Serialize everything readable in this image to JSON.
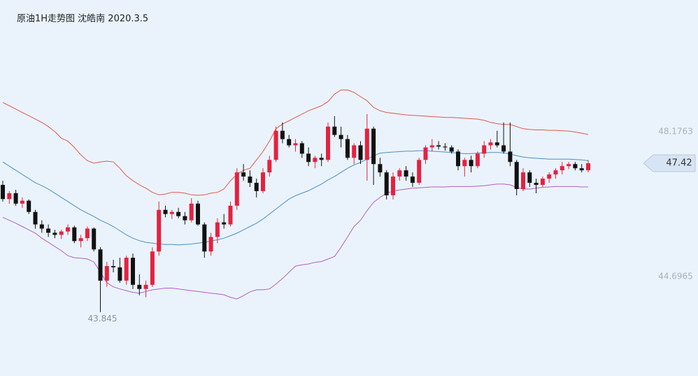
{
  "chart_data": {
    "type": "candlestick",
    "title": "原油1H走势图 沈皓南 2020.3.5",
    "up_color": "#e5213f",
    "down_color": "#111111",
    "ylim": [
      42.31,
      51.34
    ],
    "yticks": [
      44.6965,
      48.1763
    ],
    "low_label": 43.845,
    "low_index": 15,
    "last_price": 47.42,
    "open": [
      46.9,
      46.56,
      46.7,
      46.45,
      46.52,
      46.25,
      45.95,
      45.85,
      45.75,
      45.7,
      45.78,
      45.88,
      45.55,
      45.62,
      45.85,
      45.35,
      44.6,
      44.95,
      44.92,
      44.6,
      45.15,
      44.5,
      44.4,
      44.5,
      45.3,
      46.3,
      46.2,
      46.25,
      46.15,
      46.05,
      46.45,
      45.95,
      45.3,
      45.65,
      46.0,
      45.95,
      46.4,
      47.2,
      47.1,
      46.95,
      46.75,
      47.2,
      47.5,
      48.2,
      48.0,
      47.85,
      47.9,
      47.65,
      47.45,
      47.55,
      47.5,
      48.3,
      48.1,
      48.0,
      47.55,
      47.85,
      47.5,
      48.25,
      47.4,
      47.2,
      46.65,
      47.1,
      47.25,
      47.1,
      46.95,
      47.5,
      47.8,
      47.85,
      47.82,
      47.8,
      47.7,
      47.35,
      47.5,
      47.35,
      47.65,
      47.85,
      47.92,
      47.85,
      47.7,
      47.45,
      46.8,
      47.2,
      46.95,
      46.9,
      47.05,
      47.15,
      47.25,
      47.35,
      47.4,
      47.3,
      47.25
    ],
    "high": [
      47.0,
      46.75,
      46.78,
      46.6,
      46.55,
      46.3,
      46.05,
      45.95,
      45.82,
      45.82,
      45.95,
      45.92,
      45.7,
      45.9,
      45.88,
      45.4,
      45.05,
      45.1,
      45.15,
      45.2,
      45.25,
      44.75,
      44.6,
      45.4,
      46.5,
      46.4,
      46.3,
      46.35,
      46.25,
      46.58,
      46.52,
      46.0,
      45.75,
      46.1,
      46.2,
      46.5,
      47.3,
      47.4,
      47.25,
      47.05,
      47.3,
      47.6,
      48.3,
      48.4,
      48.1,
      48.0,
      47.95,
      47.8,
      47.6,
      47.65,
      48.4,
      48.55,
      48.3,
      48.1,
      47.9,
      47.95,
      48.6,
      48.3,
      47.55,
      47.25,
      47.2,
      47.3,
      47.35,
      47.2,
      47.55,
      47.85,
      48.0,
      47.95,
      47.9,
      47.85,
      47.75,
      47.55,
      47.6,
      47.7,
      47.95,
      48.0,
      48.2,
      48.4,
      48.4,
      47.5,
      47.3,
      47.25,
      47.05,
      47.1,
      47.2,
      47.3,
      47.45,
      47.45,
      47.45,
      47.4,
      47.5
    ],
    "low": [
      46.5,
      46.45,
      46.4,
      46.35,
      46.2,
      45.85,
      45.75,
      45.65,
      45.62,
      45.6,
      45.7,
      45.5,
      45.4,
      45.55,
      45.3,
      43.845,
      44.45,
      44.8,
      44.55,
      44.5,
      44.4,
      44.25,
      44.2,
      44.45,
      45.2,
      46.12,
      46.08,
      46.1,
      45.95,
      46.0,
      45.92,
      45.15,
      45.2,
      45.5,
      45.85,
      45.9,
      46.3,
      47.0,
      46.85,
      46.6,
      46.7,
      47.1,
      47.45,
      47.9,
      47.8,
      47.7,
      47.55,
      47.35,
      47.3,
      47.35,
      47.45,
      48.05,
      47.8,
      47.5,
      47.4,
      47.4,
      47.0,
      46.9,
      47.1,
      46.55,
      46.55,
      47.0,
      47.0,
      46.85,
      46.9,
      47.4,
      47.7,
      47.75,
      47.72,
      47.65,
      47.25,
      47.1,
      47.2,
      47.3,
      47.55,
      47.75,
      47.8,
      47.65,
      47.35,
      46.65,
      46.75,
      46.85,
      46.7,
      46.85,
      46.95,
      47.05,
      47.15,
      47.28,
      47.25,
      47.2,
      47.2
    ],
    "close": [
      46.56,
      46.7,
      46.45,
      46.52,
      46.25,
      45.95,
      45.85,
      45.75,
      45.7,
      45.78,
      45.88,
      45.55,
      45.62,
      45.85,
      45.35,
      44.6,
      44.95,
      44.92,
      44.6,
      45.15,
      44.5,
      44.4,
      44.5,
      45.3,
      46.3,
      46.2,
      46.25,
      46.15,
      46.05,
      46.45,
      45.95,
      45.3,
      45.65,
      46.0,
      45.95,
      46.4,
      47.2,
      47.1,
      46.95,
      46.75,
      47.2,
      47.5,
      48.2,
      48.0,
      47.85,
      47.9,
      47.65,
      47.45,
      47.55,
      47.5,
      48.3,
      48.1,
      48.0,
      47.55,
      47.85,
      47.5,
      48.25,
      47.4,
      47.2,
      46.65,
      47.1,
      47.25,
      47.1,
      46.95,
      47.5,
      47.8,
      47.85,
      47.82,
      47.8,
      47.7,
      47.35,
      47.5,
      47.35,
      47.65,
      47.85,
      47.92,
      47.85,
      47.7,
      47.45,
      46.8,
      47.2,
      46.95,
      46.9,
      47.05,
      47.15,
      47.25,
      47.35,
      47.4,
      47.3,
      47.25,
      47.42
    ],
    "bands": [
      {
        "color": "#e2574c",
        "values": [
          48.88,
          48.8,
          48.72,
          48.64,
          48.56,
          48.48,
          48.4,
          48.3,
          48.18,
          48.02,
          47.95,
          47.8,
          47.62,
          47.48,
          47.42,
          47.45,
          47.47,
          47.45,
          47.3,
          47.12,
          47.0,
          46.9,
          46.82,
          46.72,
          46.66,
          46.68,
          46.72,
          46.72,
          46.7,
          46.66,
          46.65,
          46.66,
          46.7,
          46.72,
          46.8,
          47.0,
          47.15,
          47.25,
          47.3,
          47.5,
          47.7,
          47.95,
          48.25,
          48.36,
          48.44,
          48.52,
          48.6,
          48.68,
          48.74,
          48.8,
          48.9,
          49.08,
          49.18,
          49.18,
          49.12,
          49.02,
          48.92,
          48.76,
          48.68,
          48.64,
          48.62,
          48.6,
          48.58,
          48.57,
          48.56,
          48.55,
          48.54,
          48.53,
          48.52,
          48.52,
          48.51,
          48.5,
          48.49,
          48.48,
          48.45,
          48.4,
          48.37,
          48.35,
          48.35,
          48.3,
          48.25,
          48.23,
          48.22,
          48.22,
          48.21,
          48.21,
          48.2,
          48.19,
          48.17,
          48.14,
          48.11
        ]
      },
      {
        "color": "#4a8fc9",
        "values": [
          47.45,
          47.35,
          47.25,
          47.15,
          47.05,
          46.95,
          46.88,
          46.8,
          46.7,
          46.6,
          46.5,
          46.4,
          46.3,
          46.22,
          46.14,
          46.05,
          45.98,
          45.9,
          45.8,
          45.7,
          45.62,
          45.56,
          45.52,
          45.5,
          45.48,
          45.47,
          45.47,
          45.46,
          45.47,
          45.48,
          45.5,
          45.52,
          45.55,
          45.58,
          45.62,
          45.68,
          45.74,
          45.82,
          45.9,
          45.98,
          46.08,
          46.2,
          46.32,
          46.44,
          46.56,
          46.64,
          46.7,
          46.76,
          46.84,
          46.92,
          47.02,
          47.1,
          47.2,
          47.3,
          47.38,
          47.44,
          47.52,
          47.6,
          47.66,
          47.68,
          47.69,
          47.7,
          47.71,
          47.71,
          47.72,
          47.72,
          47.71,
          47.7,
          47.69,
          47.68,
          47.66,
          47.65,
          47.65,
          47.66,
          47.67,
          47.68,
          47.68,
          47.67,
          47.64,
          47.6,
          47.57,
          47.55,
          47.54,
          47.53,
          47.52,
          47.52,
          47.52,
          47.52,
          47.51,
          47.5,
          47.48
        ]
      },
      {
        "color": "#b45ec4",
        "values": [
          46.12,
          46.05,
          45.98,
          45.9,
          45.82,
          45.74,
          45.62,
          45.52,
          45.42,
          45.32,
          45.2,
          45.15,
          45.14,
          45.12,
          45.05,
          44.8,
          44.55,
          44.45,
          44.4,
          44.36,
          44.32,
          44.3,
          44.34,
          44.38,
          44.4,
          44.42,
          44.42,
          44.4,
          44.38,
          44.36,
          44.34,
          44.32,
          44.3,
          44.28,
          44.26,
          44.2,
          44.16,
          44.24,
          44.33,
          44.38,
          44.38,
          44.4,
          44.52,
          44.65,
          44.8,
          44.95,
          44.98,
          45.0,
          45.04,
          45.06,
          45.12,
          45.18,
          45.4,
          45.65,
          45.9,
          46.05,
          46.28,
          46.48,
          46.6,
          46.7,
          46.75,
          46.78,
          46.8,
          46.82,
          46.83,
          46.84,
          46.85,
          46.85,
          46.85,
          46.86,
          46.86,
          46.86,
          46.86,
          46.87,
          46.88,
          46.9,
          46.92,
          46.92,
          46.9,
          46.84,
          46.8,
          46.8,
          46.82,
          46.84,
          46.85,
          46.86,
          46.86,
          46.86,
          46.86,
          46.85,
          46.85
        ]
      }
    ]
  }
}
